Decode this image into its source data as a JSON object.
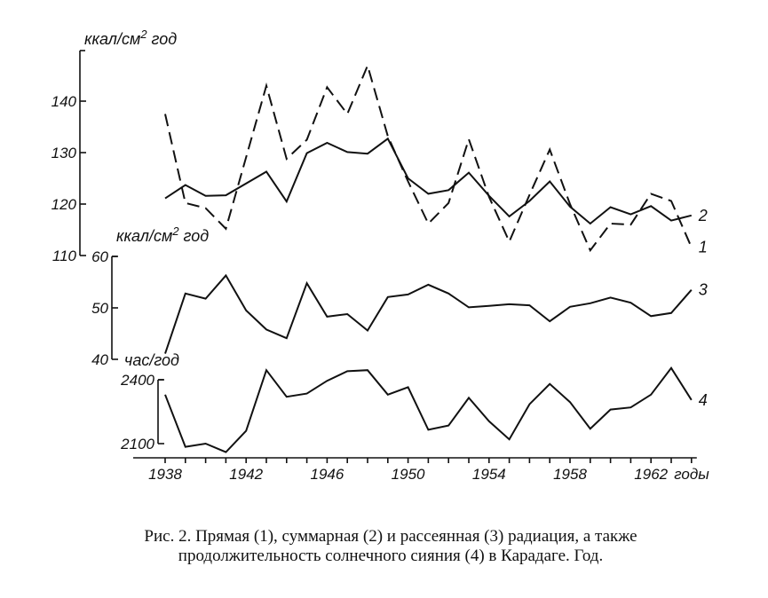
{
  "chart_data": [
    {
      "type": "line",
      "ylabel": "ккал/см² год",
      "yticks": [
        110,
        120,
        130,
        140
      ],
      "ylim": [
        110,
        150
      ],
      "x": [
        1938,
        1939,
        1940,
        1941,
        1942,
        1943,
        1944,
        1945,
        1946,
        1947,
        1948,
        1949,
        1950,
        1951,
        1952,
        1953,
        1954,
        1955,
        1956,
        1957,
        1958,
        1959,
        1960,
        1961,
        1962,
        1963,
        1964
      ],
      "series": [
        {
          "name": "1",
          "style": "dashed",
          "values": [
            137.5,
            120.2,
            119.2,
            115.2,
            null,
            143,
            128.8,
            132.5,
            142.7,
            137.5,
            146.9,
            133.2,
            124.4,
            116.2,
            120.2,
            132.6,
            121.4,
            112.7,
            121.8,
            130.6,
            120,
            111,
            116.2,
            116,
            122,
            120.6,
            111.6
          ]
        },
        {
          "name": "2",
          "style": "solid",
          "values": [
            121.1,
            123.7,
            121.6,
            121.7,
            null,
            126.3,
            120.5,
            129.9,
            131.9,
            130.1,
            129.8,
            132.7,
            125,
            122,
            122.7,
            126.1,
            121.6,
            117.6,
            120.6,
            124.4,
            119.5,
            116.2,
            119.4,
            118,
            119.6,
            116.8,
            117.8
          ]
        }
      ]
    },
    {
      "type": "line",
      "ylabel": "ккал/см² год",
      "yticks": [
        40,
        50,
        60
      ],
      "ylim": [
        40,
        60
      ],
      "x": [
        1938,
        1939,
        1940,
        1941,
        1942,
        1943,
        1944,
        1945,
        1946,
        1947,
        1948,
        1949,
        1950,
        1951,
        1952,
        1953,
        1954,
        1955,
        1956,
        1957,
        1958,
        1959,
        1960,
        1961,
        1962,
        1963,
        1964
      ],
      "series": [
        {
          "name": "3",
          "style": "solid",
          "values": [
            41.1,
            52.8,
            51.8,
            56.3,
            49.5,
            45.8,
            44.1,
            54.8,
            48.3,
            48.8,
            45.6,
            52.1,
            52.6,
            54.5,
            52.8,
            50.1,
            50.4,
            50.7,
            50.5,
            47.4,
            50.2,
            50.9,
            52,
            51,
            48.4,
            49,
            53.5
          ]
        }
      ]
    },
    {
      "type": "line",
      "ylabel": "час/год",
      "yticks": [
        2100,
        2400
      ],
      "ylim": [
        2100,
        2400
      ],
      "x": [
        1938,
        1939,
        1940,
        1941,
        1942,
        1943,
        1944,
        1945,
        1946,
        1947,
        1948,
        1949,
        1950,
        1951,
        1952,
        1953,
        1954,
        1955,
        1956,
        1957,
        1958,
        1959,
        1960,
        1961,
        1962,
        1963,
        1964
      ],
      "xlabel": "годы",
      "xticks": [
        "1938",
        "1942",
        "1946",
        "1950",
        "1954",
        "1958",
        "1962"
      ],
      "series": [
        {
          "name": "4",
          "style": "solid",
          "values": [
            2330,
            2085,
            2100,
            2060,
            2160,
            2445,
            2320,
            2335,
            2395,
            2440,
            2445,
            2330,
            2365,
            2165,
            2185,
            2315,
            2205,
            2120,
            2285,
            2380,
            2295,
            2170,
            2260,
            2270,
            2330,
            2455,
            2305
          ]
        }
      ]
    }
  ],
  "caption": {
    "line1": "Рис. 2. Прямая (1), суммарная (2) и рассеянная (3) радиация, а также",
    "line2": "продолжительность солнечного сияния (4) в Карадаге. Год."
  }
}
